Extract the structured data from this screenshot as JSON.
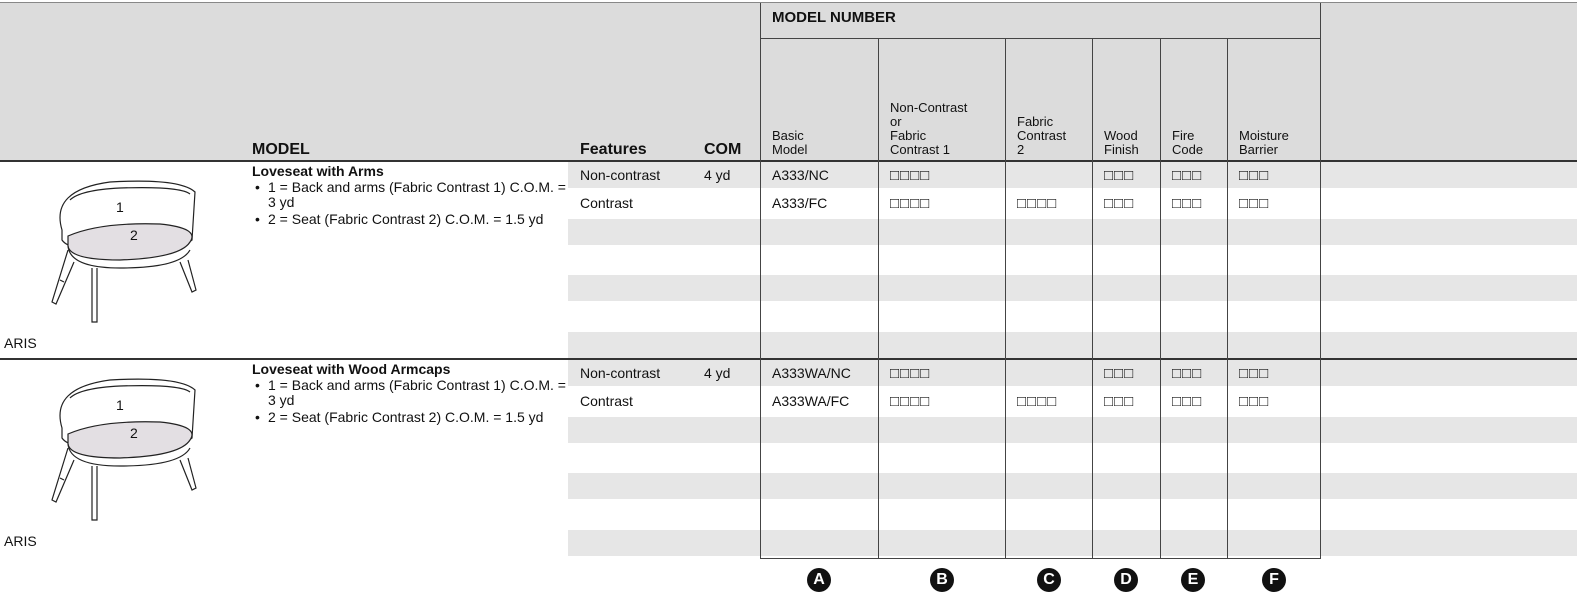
{
  "header": {
    "group_title": "MODEL NUMBER",
    "columns": [
      "MODEL",
      "Features",
      "COM",
      "Basic\nModel",
      "Non-Contrast\nor\nFabric\nContrast 1",
      "Fabric\nContrast\n2",
      "Wood\nFinish",
      "Fire\nCode",
      "Moisture\nBarrier"
    ]
  },
  "sections": [
    {
      "name": "ARIS",
      "image_labels": [
        "1",
        "2"
      ],
      "title": "Loveseat with Arms",
      "bullets": [
        "1 = Back and arms (Fabric Contrast 1) C.O.M. = 3 yd",
        "2 = Seat (Fabric Contrast 2) C.O.M. = 1.5 yd"
      ],
      "rows": [
        {
          "features": "Non-contrast",
          "com": "4 yd",
          "basic": "A333/NC",
          "b": "□□□□",
          "d": "□□□",
          "e": "□□□",
          "f": "□□□"
        },
        {
          "features": "Contrast",
          "basic": "A333/FC",
          "b": "□□□□",
          "c": "□□□□",
          "d": "□□□",
          "e": "□□□",
          "f": "□□□"
        }
      ]
    },
    {
      "name": "ARIS",
      "image_labels": [
        "1",
        "2"
      ],
      "title": "Loveseat with Wood Armcaps",
      "bullets": [
        "1 = Back and arms (Fabric Contrast 1) C.O.M. = 3 yd",
        "2 = Seat (Fabric Contrast 2) C.O.M. = 1.5 yd"
      ],
      "rows": [
        {
          "features": "Non-contrast",
          "com": "4 yd",
          "basic": "A333WA/NC",
          "b": "□□□□",
          "d": "□□□",
          "e": "□□□",
          "f": "□□□"
        },
        {
          "features": "Contrast",
          "basic": "A333WA/FC",
          "b": "□□□□",
          "c": "□□□□",
          "d": "□□□",
          "e": "□□□",
          "f": "□□□"
        }
      ]
    }
  ],
  "footer": {
    "markers": [
      "A",
      "B",
      "C",
      "D",
      "E",
      "F"
    ]
  }
}
